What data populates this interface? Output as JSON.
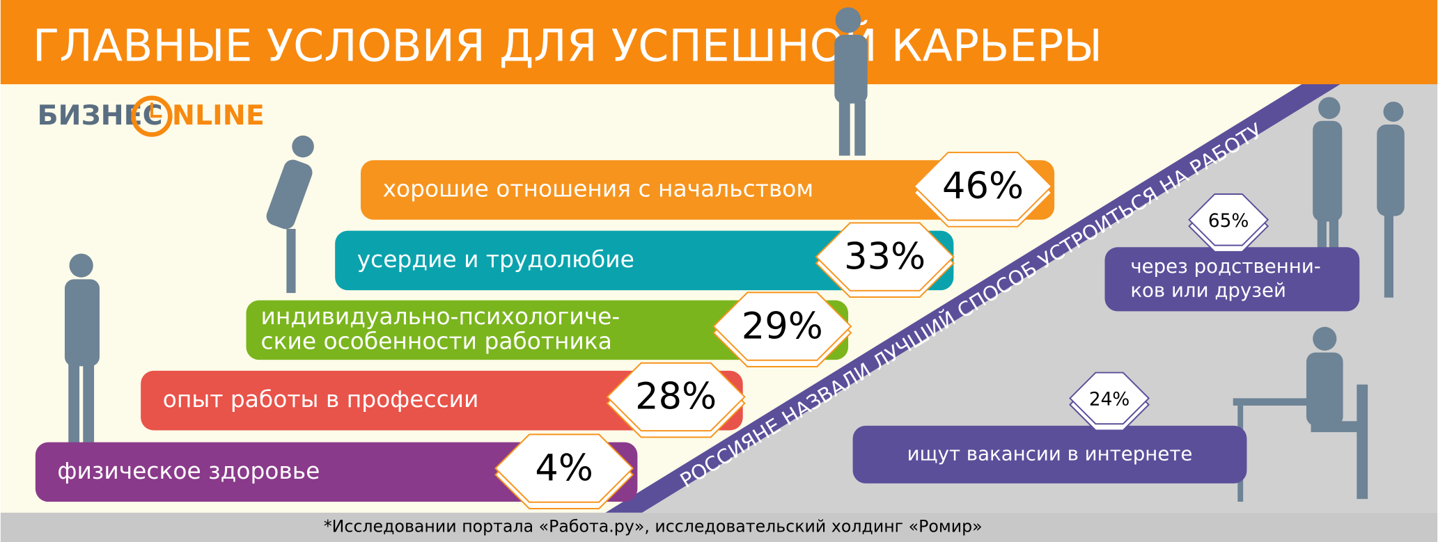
{
  "header": {
    "title": "ГЛАВНЫЕ УСЛОВИЯ ДЛЯ УСПЕШНОЙ КАРЬЕРЫ"
  },
  "logo": {
    "left": "БИЗНЕС",
    "right": "NLINE"
  },
  "items": [
    {
      "lines": [
        "хорошие отношения с начальством"
      ],
      "value": "46%",
      "color": "#f7941d"
    },
    {
      "lines": [
        "усердие и трудолюбие"
      ],
      "value": "33%",
      "color": "#0aa3ad"
    },
    {
      "lines": [
        "индивидуально-психологиче-",
        "ские особенности работника"
      ],
      "value": "29%",
      "color": "#7ab51d"
    },
    {
      "lines": [
        "опыт работы в профессии"
      ],
      "value": "28%",
      "color": "#e8534a"
    },
    {
      "lines": [
        "физическое здоровье"
      ],
      "value": "4%",
      "color": "#8a3a8a"
    }
  ],
  "banner": "РОССИЯНЕ НАЗВАЛИ ЛУЧШИЙ СПОСОБ УСТРОИТЬСЯ НА РАБОТУ",
  "ways": [
    {
      "lines": [
        "через родственни-",
        "ков или друзей"
      ],
      "value": "65%"
    },
    {
      "lines": [
        "ищут вакансии в интернете"
      ],
      "value": "24%"
    }
  ],
  "footnote": "*Исследовании портала «Работа.ру», исследовательский холдинг «Ромир»"
}
